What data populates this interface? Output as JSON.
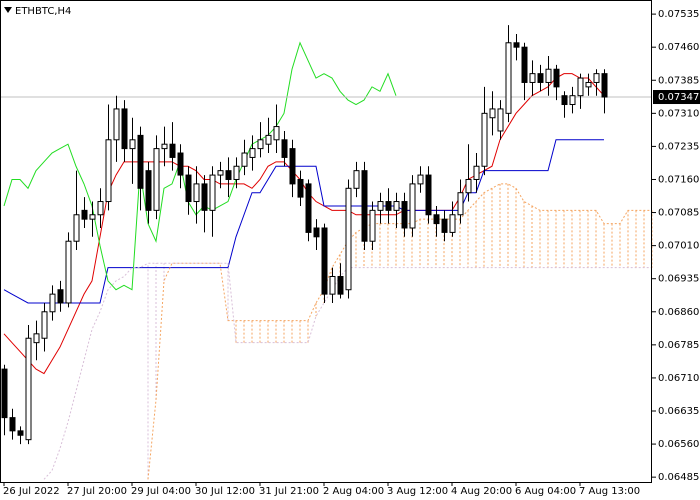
{
  "chart_data": {
    "type": "candlestick",
    "title": "ETHBTC,H4",
    "ylim": [
      0.06474,
      0.07567
    ],
    "yticks": [
      0.07535,
      {
        "value": 0.0746,
        "label": "0.07460"
      },
      0.07385,
      {
        "value": 0.0731,
        "label": "0.07310"
      },
      0.07235,
      {
        "value": 0.0716,
        "label": "0.07160"
      },
      0.07085,
      {
        "value": 0.0701,
        "label": "0.07010"
      },
      0.06935,
      {
        "value": 0.0686,
        "label": "0.06860"
      },
      0.06785,
      {
        "value": 0.0671,
        "label": "0.06710"
      },
      0.06635,
      {
        "value": 0.0656,
        "label": "0.06560"
      },
      0.06485
    ],
    "last_price": 0.07347,
    "up_color": "#ffffff",
    "down_color": "#000000",
    "categories": [
      "26 Jul 2022",
      null,
      null,
      null,
      null,
      null,
      null,
      null,
      "27 Jul 20:00",
      null,
      null,
      null,
      null,
      null,
      null,
      null,
      "29 Jul 04:00",
      null,
      null,
      null,
      null,
      null,
      null,
      null,
      "30 Jul 12:00",
      null,
      null,
      null,
      null,
      null,
      null,
      null,
      "31 Jul 21:00",
      null,
      null,
      null,
      null,
      null,
      null,
      null,
      "2 Aug 04:00",
      null,
      null,
      null,
      null,
      null,
      null,
      null,
      "3 Aug 12:00",
      null,
      null,
      null,
      null,
      null,
      null,
      null,
      "4 Aug 20:00",
      null,
      null,
      null,
      null,
      null,
      null,
      null,
      "6 Aug 04:00",
      null,
      null,
      null,
      null,
      null,
      null,
      null,
      "7 Aug 13:00",
      null,
      null,
      null,
      null,
      null,
      null,
      null,
      null,
      null
    ],
    "candles": [
      [
        0.0673,
        0.0674,
        0.0658,
        0.0662
      ],
      [
        0.0662,
        0.0664,
        0.0657,
        0.0659
      ],
      [
        0.0659,
        0.066,
        0.0656,
        0.0658
      ],
      [
        0.0657,
        0.0683,
        0.0656,
        0.068
      ],
      [
        0.0679,
        0.0684,
        0.0675,
        0.0681
      ],
      [
        0.068,
        0.0688,
        0.0677,
        0.0686
      ],
      [
        0.0686,
        0.0692,
        0.0684,
        0.069
      ],
      [
        0.0691,
        0.0693,
        0.0686,
        0.0688
      ],
      [
        0.0688,
        0.0704,
        0.0687,
        0.0702
      ],
      [
        0.0702,
        0.0718,
        0.07,
        0.0708
      ],
      [
        0.0709,
        0.0712,
        0.0705,
        0.0707
      ],
      [
        0.0707,
        0.0711,
        0.0703,
        0.0708
      ],
      [
        0.0708,
        0.0714,
        0.0705,
        0.0711
      ],
      [
        0.0711,
        0.0733,
        0.0709,
        0.0725
      ],
      [
        0.0725,
        0.0735,
        0.072,
        0.0732
      ],
      [
        0.0732,
        0.0734,
        0.072,
        0.0723
      ],
      [
        0.0723,
        0.073,
        0.0715,
        0.0725
      ],
      [
        0.0726,
        0.0728,
        0.0709,
        0.0714
      ],
      [
        0.0718,
        0.072,
        0.0706,
        0.0709
      ],
      [
        0.0709,
        0.0726,
        0.0707,
        0.0723
      ],
      [
        0.0723,
        0.0728,
        0.0719,
        0.0724
      ],
      [
        0.0724,
        0.0729,
        0.0718,
        0.0721
      ],
      [
        0.0722,
        0.0724,
        0.0714,
        0.0717
      ],
      [
        0.0717,
        0.0719,
        0.0708,
        0.0711
      ],
      [
        0.0711,
        0.0719,
        0.0706,
        0.0715
      ],
      [
        0.0715,
        0.0717,
        0.0704,
        0.0709
      ],
      [
        0.0709,
        0.0719,
        0.0703,
        0.0717
      ],
      [
        0.0717,
        0.072,
        0.0714,
        0.0718
      ],
      [
        0.0718,
        0.0721,
        0.0712,
        0.0716
      ],
      [
        0.0716,
        0.0721,
        0.0714,
        0.0719
      ],
      [
        0.0719,
        0.0725,
        0.0717,
        0.0722
      ],
      [
        0.0721,
        0.0726,
        0.0718,
        0.0723
      ],
      [
        0.0723,
        0.0729,
        0.0721,
        0.0725
      ],
      [
        0.0724,
        0.073,
        0.0722,
        0.0726
      ],
      [
        0.0725,
        0.0733,
        0.0722,
        0.0728
      ],
      [
        0.0725,
        0.0727,
        0.0719,
        0.0721
      ],
      [
        0.0723,
        0.0725,
        0.0712,
        0.0715
      ],
      [
        0.0716,
        0.0718,
        0.071,
        0.0712
      ],
      [
        0.0715,
        0.0716,
        0.0702,
        0.0704
      ],
      [
        0.0705,
        0.0707,
        0.07,
        0.0703
      ],
      [
        0.0705,
        0.0706,
        0.0688,
        0.069
      ],
      [
        0.069,
        0.0696,
        0.0688,
        0.0694
      ],
      [
        0.0694,
        0.0697,
        0.0689,
        0.069
      ],
      [
        0.0691,
        0.0716,
        0.0689,
        0.0714
      ],
      [
        0.0714,
        0.072,
        0.0712,
        0.0718
      ],
      [
        0.0718,
        0.072,
        0.07,
        0.0702
      ],
      [
        0.0702,
        0.0711,
        0.07,
        0.0709
      ],
      [
        0.0709,
        0.0713,
        0.0706,
        0.0711
      ],
      [
        0.0711,
        0.0714,
        0.0706,
        0.0709
      ],
      [
        0.0709,
        0.0713,
        0.0705,
        0.0711
      ],
      [
        0.0711,
        0.0713,
        0.0703,
        0.0705
      ],
      [
        0.0705,
        0.0717,
        0.0703,
        0.0715
      ],
      [
        0.0715,
        0.0719,
        0.0713,
        0.0717
      ],
      [
        0.0717,
        0.0719,
        0.0706,
        0.0708
      ],
      [
        0.0708,
        0.071,
        0.0703,
        0.0706
      ],
      [
        0.0707,
        0.0709,
        0.0702,
        0.0704
      ],
      [
        0.0704,
        0.0711,
        0.0703,
        0.0708
      ],
      [
        0.0708,
        0.0716,
        0.0706,
        0.0713
      ],
      [
        0.0713,
        0.0724,
        0.0711,
        0.0716
      ],
      [
        0.0716,
        0.0722,
        0.0713,
        0.0719
      ],
      [
        0.0719,
        0.0737,
        0.0717,
        0.0731
      ],
      [
        0.073,
        0.0736,
        0.0726,
        0.0732
      ],
      [
        0.0727,
        0.0734,
        0.0725,
        0.0732
      ],
      [
        0.0731,
        0.0751,
        0.0729,
        0.0747
      ],
      [
        0.0747,
        0.0749,
        0.0743,
        0.0746
      ],
      [
        0.0746,
        0.0747,
        0.0734,
        0.0738
      ],
      [
        0.0738,
        0.0743,
        0.0735,
        0.074
      ],
      [
        0.074,
        0.0742,
        0.0736,
        0.0738
      ],
      [
        0.0738,
        0.0744,
        0.0735,
        0.0741
      ],
      [
        0.0741,
        0.0742,
        0.0734,
        0.0737
      ],
      [
        0.0735,
        0.0736,
        0.073,
        0.0733
      ],
      [
        0.0733,
        0.0737,
        0.0731,
        0.0735
      ],
      [
        0.0735,
        0.074,
        0.0732,
        0.0739
      ],
      [
        0.0737,
        0.074,
        0.0735,
        0.0738
      ],
      [
        0.0738,
        0.0741,
        0.0735,
        0.074
      ],
      [
        0.074,
        0.0741,
        0.0731,
        0.07347
      ]
    ],
    "series": [
      {
        "color": "#e00000",
        "style": "solid",
        "values": [
          0.0681,
          0.0679,
          0.0677,
          0.0675,
          0.0673,
          0.0672,
          0.0675,
          0.0678,
          0.0682,
          0.0686,
          0.069,
          0.0693,
          0.0703,
          0.0713,
          0.0717,
          0.072,
          0.072,
          0.072,
          0.072,
          0.072,
          0.072,
          0.072,
          0.0719,
          0.0719,
          0.0718,
          0.0716,
          0.0716,
          0.0715,
          0.0715,
          0.0715,
          0.0715,
          0.0714,
          0.0716,
          0.0719,
          0.072,
          0.072,
          0.0718,
          0.0716,
          0.0713,
          0.0711,
          0.071,
          0.0709,
          0.0709,
          0.0709,
          0.0708,
          0.0708,
          0.0708,
          0.0708,
          0.0708,
          0.0708,
          0.0709,
          0.0709,
          0.0709,
          0.0709,
          0.0709,
          0.0709,
          0.0709,
          0.0712,
          0.0716,
          0.0717,
          0.0718,
          0.0719,
          0.0725,
          0.0728,
          0.0731,
          0.0733,
          0.0735,
          0.0736,
          0.0737,
          0.0739,
          0.074,
          0.074,
          0.0739,
          0.0739,
          0.0737,
          0.0735,
          null,
          null,
          null,
          null,
          null,
          null
        ]
      },
      {
        "color": "#0000cc",
        "style": "solid",
        "values": [
          0.0691,
          0.069,
          0.0689,
          0.0688,
          0.0688,
          0.0688,
          0.0688,
          0.0688,
          0.0688,
          0.0688,
          0.0688,
          0.0688,
          0.0688,
          0.0696,
          0.0696,
          0.0696,
          0.0696,
          0.0696,
          0.0696,
          0.0696,
          0.0696,
          0.0696,
          0.0696,
          0.0696,
          0.0696,
          0.0696,
          0.0696,
          0.0696,
          0.0696,
          0.0703,
          0.0708,
          0.0713,
          0.0713,
          0.0716,
          0.0719,
          0.0719,
          0.0719,
          0.0719,
          0.0719,
          0.0719,
          0.071,
          0.071,
          0.071,
          0.071,
          0.071,
          0.071,
          0.071,
          0.071,
          0.071,
          0.071,
          0.0709,
          0.0709,
          0.0709,
          0.0709,
          0.0709,
          0.0709,
          0.0709,
          0.0709,
          0.0713,
          0.0713,
          0.0718,
          0.0718,
          0.0718,
          0.0718,
          0.0718,
          0.0718,
          0.0718,
          0.0718,
          0.0718,
          0.0725,
          0.0725,
          0.0725,
          0.0725,
          0.0725,
          0.0725,
          0.0725,
          null,
          null,
          null,
          null,
          null,
          null
        ]
      },
      {
        "color": "#22dd22",
        "style": "solid",
        "values": [
          0.071,
          0.0716,
          0.0716,
          0.0714,
          0.0718,
          0.072,
          0.0722,
          0.0723,
          0.0724,
          0.0719,
          0.0715,
          0.071,
          0.0701,
          0.0693,
          0.0691,
          0.0692,
          0.0691,
          0.0718,
          0.0706,
          0.0702,
          0.0714,
          0.0715,
          0.072,
          0.0711,
          0.0708,
          0.071,
          0.0709,
          0.071,
          0.0711,
          0.0716,
          0.072,
          0.0724,
          0.0725,
          0.0726,
          0.0728,
          0.0731,
          0.0741,
          0.0747,
          0.0743,
          0.0739,
          0.074,
          0.0739,
          0.0736,
          0.0734,
          0.0733,
          0.0734,
          0.0737,
          0.0736,
          0.074,
          0.0735,
          null,
          null,
          null,
          null,
          null,
          null,
          null,
          null,
          null,
          null,
          null,
          null,
          null,
          null,
          null,
          null,
          null,
          null,
          null,
          null,
          null,
          null,
          null,
          null,
          null,
          null,
          null,
          null,
          null,
          null,
          null,
          null
        ]
      },
      {
        "color": "#f4a460",
        "style": "dotted",
        "values": [
          null,
          null,
          null,
          null,
          null,
          null,
          null,
          null,
          null,
          null,
          null,
          null,
          null,
          null,
          null,
          null,
          null,
          null,
          0.0648,
          0.0666,
          0.0693,
          0.0697,
          0.0697,
          0.0697,
          0.0697,
          0.0697,
          0.0697,
          0.0697,
          0.0684,
          0.0684,
          0.0684,
          0.0684,
          0.0684,
          0.0684,
          0.0684,
          0.0684,
          0.0684,
          0.0684,
          0.0684,
          0.0688,
          0.0691,
          0.0696,
          0.0699,
          0.0702,
          0.0704,
          0.0705,
          0.0706,
          0.0706,
          0.0706,
          0.0706,
          0.0706,
          0.0706,
          0.0707,
          0.0707,
          0.0707,
          0.0707,
          0.0707,
          0.0707,
          0.0709,
          0.0711,
          0.0713,
          0.0714,
          0.0715,
          0.0715,
          0.0714,
          0.0711,
          0.071,
          0.0709,
          0.0709,
          0.0709,
          0.0709,
          0.0709,
          0.0709,
          0.0709,
          0.0709,
          0.0706,
          0.0706,
          0.0706,
          0.0709,
          0.0709,
          0.0709,
          0.0709
        ]
      },
      {
        "color": "#d8bfd8",
        "style": "dotted",
        "values": [
          null,
          null,
          null,
          null,
          null,
          0.0648,
          0.065,
          0.0655,
          0.0661,
          0.0668,
          0.0675,
          0.0682,
          0.0686,
          0.0691,
          0.0693,
          0.0694,
          0.0696,
          0.0696,
          0.0697,
          0.0697,
          0.0697,
          0.0697,
          0.0697,
          0.0697,
          0.0697,
          0.0697,
          0.0697,
          0.0697,
          0.0697,
          0.0679,
          0.0679,
          0.0679,
          0.0679,
          0.0679,
          0.0679,
          0.0679,
          0.0679,
          0.0679,
          0.0679,
          0.0685,
          0.0688,
          0.0691,
          0.0694,
          0.0696,
          0.0696,
          0.0696,
          0.0696,
          0.0696,
          0.0696,
          0.0696,
          0.0696,
          0.0696,
          0.0696,
          0.0696,
          0.0696,
          0.0696,
          0.0696,
          0.0696,
          0.0696,
          0.0696,
          0.0696,
          0.0696,
          0.0696,
          0.0696,
          0.0696,
          0.0696,
          0.0696,
          0.0696,
          0.0696,
          0.0696,
          0.0696,
          0.0696,
          0.0696,
          0.0696,
          0.0696,
          0.0696,
          0.0696,
          0.0696,
          0.0696,
          0.0696,
          0.0696,
          0.0696
        ]
      }
    ],
    "cloud_series": [
      3,
      4
    ],
    "grid": false
  }
}
